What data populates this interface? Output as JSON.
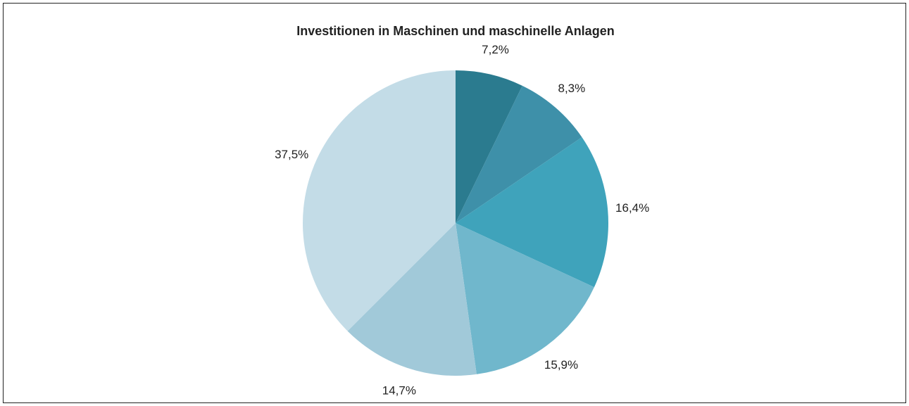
{
  "chart_data": {
    "type": "pie",
    "title": "Investitionen in Maschinen und maschinelle Anlagen",
    "values": [
      7.2,
      8.3,
      16.4,
      15.9,
      14.7,
      37.5
    ],
    "value_labels": [
      "7,2%",
      "8,3%",
      "16,4%",
      "15,9%",
      "14,7%",
      "37,5%"
    ],
    "colors": [
      "#2b7b8f",
      "#3e90a9",
      "#3fa3bb",
      "#70b7cc",
      "#a1c9d9",
      "#c3dce7"
    ]
  }
}
